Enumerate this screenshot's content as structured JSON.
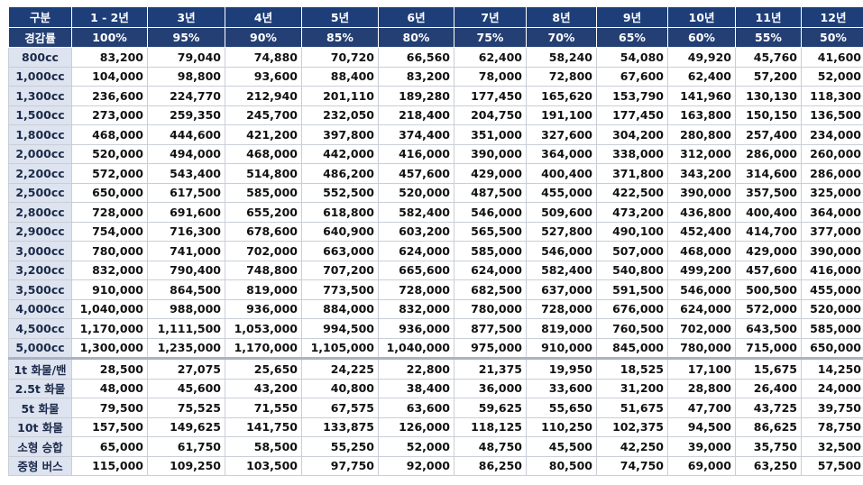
{
  "header": {
    "corner": "구분",
    "years": [
      "1 - 2년",
      "3년",
      "4년",
      "5년",
      "6년",
      "7년",
      "8년",
      "9년",
      "10년",
      "11년",
      "12년"
    ],
    "rate_label": "경감률",
    "rates": [
      "100%",
      "95%",
      "90%",
      "85%",
      "80%",
      "75%",
      "70%",
      "65%",
      "60%",
      "55%",
      "50%"
    ]
  },
  "rows": [
    {
      "label": "800cc",
      "values": [
        "83,200",
        "79,040",
        "74,880",
        "70,720",
        "66,560",
        "62,400",
        "58,240",
        "54,080",
        "49,920",
        "45,760",
        "41,600"
      ]
    },
    {
      "label": "1,000cc",
      "values": [
        "104,000",
        "98,800",
        "93,600",
        "88,400",
        "83,200",
        "78,000",
        "72,800",
        "67,600",
        "62,400",
        "57,200",
        "52,000"
      ]
    },
    {
      "label": "1,300cc",
      "values": [
        "236,600",
        "224,770",
        "212,940",
        "201,110",
        "189,280",
        "177,450",
        "165,620",
        "153,790",
        "141,960",
        "130,130",
        "118,300"
      ]
    },
    {
      "label": "1,500cc",
      "values": [
        "273,000",
        "259,350",
        "245,700",
        "232,050",
        "218,400",
        "204,750",
        "191,100",
        "177,450",
        "163,800",
        "150,150",
        "136,500"
      ]
    },
    {
      "label": "1,800cc",
      "values": [
        "468,000",
        "444,600",
        "421,200",
        "397,800",
        "374,400",
        "351,000",
        "327,600",
        "304,200",
        "280,800",
        "257,400",
        "234,000"
      ]
    },
    {
      "label": "2,000cc",
      "values": [
        "520,000",
        "494,000",
        "468,000",
        "442,000",
        "416,000",
        "390,000",
        "364,000",
        "338,000",
        "312,000",
        "286,000",
        "260,000"
      ]
    },
    {
      "label": "2,200cc",
      "values": [
        "572,000",
        "543,400",
        "514,800",
        "486,200",
        "457,600",
        "429,000",
        "400,400",
        "371,800",
        "343,200",
        "314,600",
        "286,000"
      ]
    },
    {
      "label": "2,500cc",
      "values": [
        "650,000",
        "617,500",
        "585,000",
        "552,500",
        "520,000",
        "487,500",
        "455,000",
        "422,500",
        "390,000",
        "357,500",
        "325,000"
      ]
    },
    {
      "label": "2,800cc",
      "values": [
        "728,000",
        "691,600",
        "655,200",
        "618,800",
        "582,400",
        "546,000",
        "509,600",
        "473,200",
        "436,800",
        "400,400",
        "364,000"
      ]
    },
    {
      "label": "2,900cc",
      "values": [
        "754,000",
        "716,300",
        "678,600",
        "640,900",
        "603,200",
        "565,500",
        "527,800",
        "490,100",
        "452,400",
        "414,700",
        "377,000"
      ]
    },
    {
      "label": "3,000cc",
      "values": [
        "780,000",
        "741,000",
        "702,000",
        "663,000",
        "624,000",
        "585,000",
        "546,000",
        "507,000",
        "468,000",
        "429,000",
        "390,000"
      ]
    },
    {
      "label": "3,200cc",
      "values": [
        "832,000",
        "790,400",
        "748,800",
        "707,200",
        "665,600",
        "624,000",
        "582,400",
        "540,800",
        "499,200",
        "457,600",
        "416,000"
      ]
    },
    {
      "label": "3,500cc",
      "values": [
        "910,000",
        "864,500",
        "819,000",
        "773,500",
        "728,000",
        "682,500",
        "637,000",
        "591,500",
        "546,000",
        "500,500",
        "455,000"
      ]
    },
    {
      "label": "4,000cc",
      "values": [
        "1,040,000",
        "988,000",
        "936,000",
        "884,000",
        "832,000",
        "780,000",
        "728,000",
        "676,000",
        "624,000",
        "572,000",
        "520,000"
      ]
    },
    {
      "label": "4,500cc",
      "values": [
        "1,170,000",
        "1,111,500",
        "1,053,000",
        "994,500",
        "936,000",
        "877,500",
        "819,000",
        "760,500",
        "702,000",
        "643,500",
        "585,000"
      ]
    },
    {
      "label": "5,000cc",
      "values": [
        "1,300,000",
        "1,235,000",
        "1,170,000",
        "1,105,000",
        "1,040,000",
        "975,000",
        "910,000",
        "845,000",
        "780,000",
        "715,000",
        "650,000"
      ]
    },
    {
      "label": "1t 화물/밴",
      "values": [
        "28,500",
        "27,075",
        "25,650",
        "24,225",
        "22,800",
        "21,375",
        "19,950",
        "18,525",
        "17,100",
        "15,675",
        "14,250"
      ]
    },
    {
      "label": "2.5t 화물",
      "values": [
        "48,000",
        "45,600",
        "43,200",
        "40,800",
        "38,400",
        "36,000",
        "33,600",
        "31,200",
        "28,800",
        "26,400",
        "24,000"
      ]
    },
    {
      "label": "5t 화물",
      "values": [
        "79,500",
        "75,525",
        "71,550",
        "67,575",
        "63,600",
        "59,625",
        "55,650",
        "51,675",
        "47,700",
        "43,725",
        "39,750"
      ]
    },
    {
      "label": "10t 화물",
      "values": [
        "157,500",
        "149,625",
        "141,750",
        "133,875",
        "126,000",
        "118,125",
        "110,250",
        "102,375",
        "94,500",
        "86,625",
        "78,750"
      ]
    },
    {
      "label": "소형 승합",
      "values": [
        "65,000",
        "61,750",
        "58,500",
        "55,250",
        "52,000",
        "48,750",
        "45,500",
        "42,250",
        "39,000",
        "35,750",
        "32,500"
      ]
    },
    {
      "label": "중형 버스",
      "values": [
        "115,000",
        "109,250",
        "103,500",
        "97,750",
        "92,000",
        "86,250",
        "80,500",
        "74,750",
        "69,000",
        "63,250",
        "57,500"
      ]
    }
  ],
  "colors": {
    "header_bg": "#1d3e78",
    "rowhead_bg": "#dde3ef",
    "header_text": "#ffffff"
  }
}
